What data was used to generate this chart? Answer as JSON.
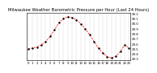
{
  "title": "Milwaukee Weather Barometric Pressure per Hour (Last 24 Hours)",
  "y_values": [
    29.5,
    29.52,
    29.54,
    29.58,
    29.65,
    29.75,
    29.88,
    30.02,
    30.1,
    30.14,
    30.12,
    30.08,
    30.0,
    29.9,
    29.78,
    29.65,
    29.52,
    29.42,
    29.35,
    29.32,
    29.36,
    29.45,
    29.58,
    29.52
  ],
  "line_color": "#ff0000",
  "marker_color": "#000000",
  "bg_color": "#ffffff",
  "ylim_min": 29.28,
  "ylim_max": 30.22,
  "y_ticks": [
    29.3,
    29.4,
    29.5,
    29.6,
    29.7,
    29.8,
    29.9,
    30.0,
    30.1,
    30.2
  ],
  "y_tick_labels": [
    "29.3",
    "29.4",
    "29.5",
    "29.6",
    "29.7",
    "29.8",
    "29.9",
    "30.0",
    "30.1",
    "30.2"
  ],
  "x_labels": [
    "0",
    "1",
    "2",
    "3",
    "4",
    "5",
    "6",
    "7",
    "8",
    "9",
    "10",
    "11",
    "12",
    "13",
    "14",
    "15",
    "16",
    "17",
    "18",
    "19",
    "20",
    "21",
    "22",
    "23"
  ],
  "title_fontsize": 3.8,
  "tick_fontsize": 2.8,
  "grid_color": "#aaaaaa",
  "line_width": 0.5,
  "marker_size": 1.5
}
